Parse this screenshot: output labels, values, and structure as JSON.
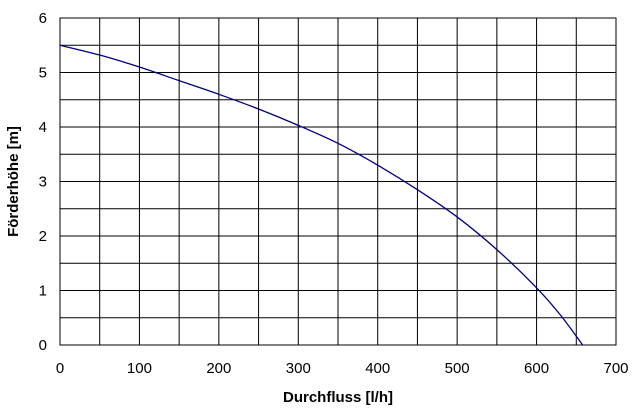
{
  "chart_data": {
    "type": "line",
    "title": "",
    "xlabel": "Durchfluss [l/h]",
    "ylabel": "Förderhöhe [m]",
    "xlim": [
      0,
      700
    ],
    "ylim": [
      0,
      6
    ],
    "x_ticks": [
      "0",
      "100",
      "200",
      "300",
      "400",
      "500",
      "600",
      "700"
    ],
    "y_ticks": [
      "0",
      "1",
      "2",
      "3",
      "4",
      "5",
      "6"
    ],
    "grid": true,
    "legend": "none",
    "series": [
      {
        "color": "#000080",
        "x": [
          0,
          50,
          100,
          150,
          200,
          250,
          300,
          350,
          400,
          450,
          500,
          550,
          600,
          630,
          658
        ],
        "y": [
          5.5,
          5.32,
          5.1,
          4.85,
          4.6,
          4.33,
          4.03,
          3.7,
          3.3,
          2.85,
          2.35,
          1.75,
          1.05,
          0.55,
          0.0
        ]
      }
    ]
  }
}
